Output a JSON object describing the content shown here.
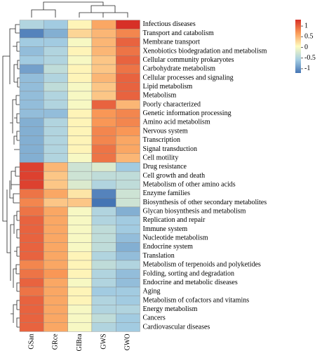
{
  "chart_data": {
    "type": "heatmap",
    "columns": [
      "GSan",
      "GRce",
      "GIBra",
      "GWS",
      "GWO"
    ],
    "rows": [
      "Infectious diseases",
      "Transport and catabolism",
      "Membrane transport",
      "Xenobiotics biodegradation and metabolism",
      "Cellular community prokaryotes",
      "Carbohydrate metabolism",
      "Cellular processes and signaling",
      "Lipid metabolism",
      "Metabolism",
      "Poorly characterized",
      "Genetic information processing",
      "Amino acid metabolism",
      "Nervous system",
      "Transcription",
      "Signal transduction",
      "Cell motility",
      "Drug resistance",
      "Cell growth and death",
      "Metabolism of other amino acids",
      "Enzyme families",
      "Biosynthesis of other secondary metabolites",
      "Glycan biosynthesis and metabolism",
      "Replication and repair",
      "Immune system",
      "Nucleotide metabolism",
      "Endocrine system",
      "Translation",
      "Metabolism of terpenoids and polyketides",
      "Folding, sorting and degradation",
      "Endocrine and metabolic diseases",
      "Aging",
      "Metabolism of cofactors and vitamins",
      "Energy metabolism",
      "Cancers",
      "Cardiovascular diseases"
    ],
    "values": [
      [
        -0.5,
        -0.6,
        0.1,
        0.6,
        1.3
      ],
      [
        -1.1,
        -0.8,
        0.3,
        0.5,
        0.8
      ],
      [
        -0.6,
        -0.6,
        0.0,
        0.5,
        1.0
      ],
      [
        -0.7,
        -0.5,
        0.1,
        0.5,
        0.9
      ],
      [
        -0.6,
        -0.5,
        0.0,
        0.4,
        1.0
      ],
      [
        -0.9,
        -0.4,
        0.1,
        0.4,
        0.9
      ],
      [
        -0.7,
        -0.5,
        0.1,
        0.5,
        1.0
      ],
      [
        -0.7,
        -0.4,
        0.0,
        0.4,
        1.0
      ],
      [
        -0.7,
        -0.5,
        0.0,
        0.4,
        1.0
      ],
      [
        -0.7,
        -0.5,
        0.0,
        1.0,
        0.5
      ],
      [
        -0.7,
        -0.7,
        0.1,
        0.7,
        0.8
      ],
      [
        -0.8,
        -0.5,
        0.1,
        0.7,
        0.8
      ],
      [
        -0.8,
        -0.5,
        0.1,
        0.8,
        0.7
      ],
      [
        -0.8,
        -0.5,
        0.1,
        0.8,
        0.6
      ],
      [
        -0.8,
        -0.5,
        0.1,
        0.9,
        0.6
      ],
      [
        -0.8,
        -0.5,
        0.0,
        0.9,
        0.5
      ],
      [
        1.2,
        0.5,
        -0.3,
        -0.2,
        -0.6
      ],
      [
        1.2,
        0.4,
        -0.3,
        -0.4,
        -0.4
      ],
      [
        1.2,
        0.4,
        -0.2,
        -0.5,
        -0.4
      ],
      [
        0.9,
        0.6,
        0.2,
        -1.1,
        -0.3
      ],
      [
        0.8,
        0.4,
        0.4,
        -1.2,
        -0.3
      ],
      [
        0.9,
        0.6,
        0.0,
        -0.5,
        -0.8
      ],
      [
        1.0,
        0.6,
        0.0,
        -0.5,
        -0.6
      ],
      [
        1.0,
        0.6,
        0.0,
        -0.4,
        -0.6
      ],
      [
        1.0,
        0.6,
        0.0,
        -0.4,
        -0.7
      ],
      [
        1.0,
        0.6,
        0.0,
        -0.4,
        -0.8
      ],
      [
        1.0,
        0.6,
        0.1,
        -0.5,
        -0.7
      ],
      [
        0.8,
        0.6,
        0.1,
        -0.4,
        -0.5
      ],
      [
        0.9,
        0.7,
        0.1,
        -0.5,
        -0.7
      ],
      [
        1.0,
        0.6,
        0.0,
        -0.5,
        -0.7
      ],
      [
        0.9,
        0.6,
        0.1,
        -0.6,
        -0.6
      ],
      [
        1.0,
        0.6,
        0.1,
        -0.5,
        -0.6
      ],
      [
        1.0,
        0.6,
        0.0,
        -0.5,
        -0.5
      ],
      [
        1.0,
        0.6,
        0.0,
        -0.4,
        -0.6
      ],
      [
        1.0,
        0.6,
        0.0,
        -0.5,
        -0.6
      ]
    ],
    "colors": [
      "#4575b4",
      "#a6cfe3",
      "#fefcc0",
      "#fa9b58",
      "#d73027"
    ],
    "clim": [
      -1.2,
      1.3
    ],
    "cticks": [
      -1,
      -0.5,
      0,
      0.5,
      1
    ]
  }
}
